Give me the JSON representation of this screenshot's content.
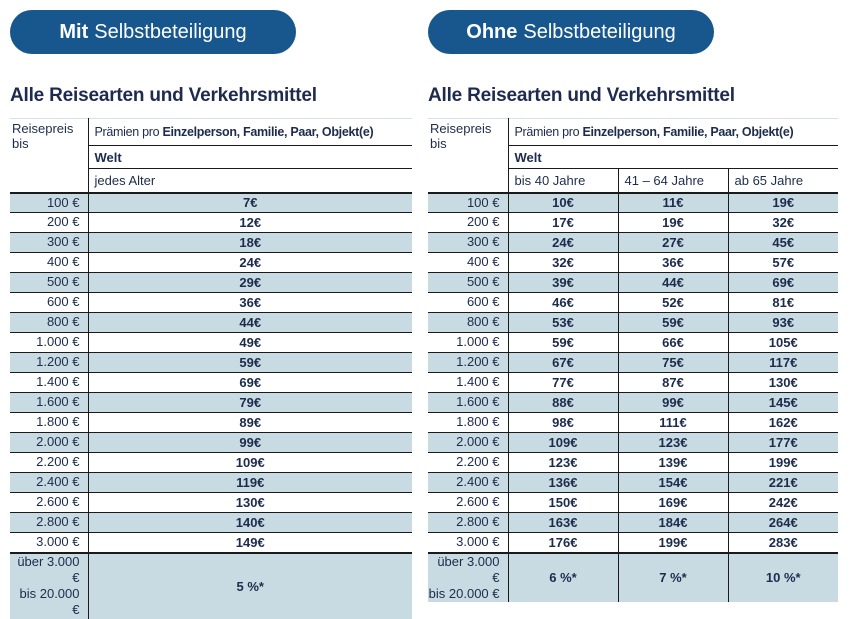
{
  "colors": {
    "pill_blue": "#17578D",
    "row_blue": "#C9DBE2",
    "text_navy": "#1D2B4C",
    "border": "#1A1A1A"
  },
  "panels": [
    {
      "badge": {
        "bold": "Mit",
        "rest": "Selbstbeteiligung"
      },
      "title": "Alle Reisearten und Verkehrsmittel",
      "table": {
        "row_header": "Reisepreis bis",
        "premium_prefix": "Prämien pro ",
        "premium_bold": "Einzelperson, Familie, Paar, Objekt(e)",
        "region": "Welt",
        "age_columns": [
          "jedes Alter"
        ],
        "rows": [
          {
            "label": "100 €",
            "values": [
              "7€"
            ]
          },
          {
            "label": "200 €",
            "values": [
              "12€"
            ]
          },
          {
            "label": "300 €",
            "values": [
              "18€"
            ]
          },
          {
            "label": "400 €",
            "values": [
              "24€"
            ]
          },
          {
            "label": "500 €",
            "values": [
              "29€"
            ]
          },
          {
            "label": "600 €",
            "values": [
              "36€"
            ]
          },
          {
            "label": "800 €",
            "values": [
              "44€"
            ]
          },
          {
            "label": "1.000 €",
            "values": [
              "49€"
            ]
          },
          {
            "label": "1.200 €",
            "values": [
              "59€"
            ]
          },
          {
            "label": "1.400 €",
            "values": [
              "69€"
            ]
          },
          {
            "label": "1.600 €",
            "values": [
              "79€"
            ]
          },
          {
            "label": "1.800 €",
            "values": [
              "89€"
            ]
          },
          {
            "label": "2.000 €",
            "values": [
              "99€"
            ]
          },
          {
            "label": "2.200 €",
            "values": [
              "109€"
            ]
          },
          {
            "label": "2.400 €",
            "values": [
              "119€"
            ]
          },
          {
            "label": "2.600 €",
            "values": [
              "130€"
            ]
          },
          {
            "label": "2.800 €",
            "values": [
              "140€"
            ]
          },
          {
            "label": "3.000 €",
            "values": [
              "149€"
            ]
          },
          {
            "label": "über 3.000 €\nbis 20.000 €",
            "values": [
              "5 %*"
            ],
            "tall": true
          }
        ]
      }
    },
    {
      "badge": {
        "bold": "Ohne",
        "rest": "Selbstbeteiligung"
      },
      "title": "Alle Reisearten und Verkehrsmittel",
      "table": {
        "row_header": "Reisepreis bis",
        "premium_prefix": "Prämien pro ",
        "premium_bold": "Einzelperson, Familie, Paar, Objekt(e)",
        "region": "Welt",
        "age_columns": [
          "bis 40 Jahre",
          "41 – 64 Jahre",
          "ab 65 Jahre"
        ],
        "rows": [
          {
            "label": "100 €",
            "values": [
              "10€",
              "11€",
              "19€"
            ]
          },
          {
            "label": "200 €",
            "values": [
              "17€",
              "19€",
              "32€"
            ]
          },
          {
            "label": "300 €",
            "values": [
              "24€",
              "27€",
              "45€"
            ]
          },
          {
            "label": "400 €",
            "values": [
              "32€",
              "36€",
              "57€"
            ]
          },
          {
            "label": "500 €",
            "values": [
              "39€",
              "44€",
              "69€"
            ]
          },
          {
            "label": "600 €",
            "values": [
              "46€",
              "52€",
              "81€"
            ]
          },
          {
            "label": "800 €",
            "values": [
              "53€",
              "59€",
              "93€"
            ]
          },
          {
            "label": "1.000 €",
            "values": [
              "59€",
              "66€",
              "105€"
            ]
          },
          {
            "label": "1.200 €",
            "values": [
              "67€",
              "75€",
              "117€"
            ]
          },
          {
            "label": "1.400 €",
            "values": [
              "77€",
              "87€",
              "130€"
            ]
          },
          {
            "label": "1.600 €",
            "values": [
              "88€",
              "99€",
              "145€"
            ]
          },
          {
            "label": "1.800 €",
            "values": [
              "98€",
              "111€",
              "162€"
            ]
          },
          {
            "label": "2.000 €",
            "values": [
              "109€",
              "123€",
              "177€"
            ]
          },
          {
            "label": "2.200 €",
            "values": [
              "123€",
              "139€",
              "199€"
            ]
          },
          {
            "label": "2.400 €",
            "values": [
              "136€",
              "154€",
              "221€"
            ]
          },
          {
            "label": "2.600 €",
            "values": [
              "150€",
              "169€",
              "242€"
            ]
          },
          {
            "label": "2.800 €",
            "values": [
              "163€",
              "184€",
              "264€"
            ]
          },
          {
            "label": "3.000 €",
            "values": [
              "176€",
              "199€",
              "283€"
            ]
          },
          {
            "label": "über 3.000 €\nbis 20.000 €",
            "values": [
              "6 %*",
              "7 %*",
              "10 %*"
            ],
            "tall": true
          }
        ]
      }
    }
  ]
}
